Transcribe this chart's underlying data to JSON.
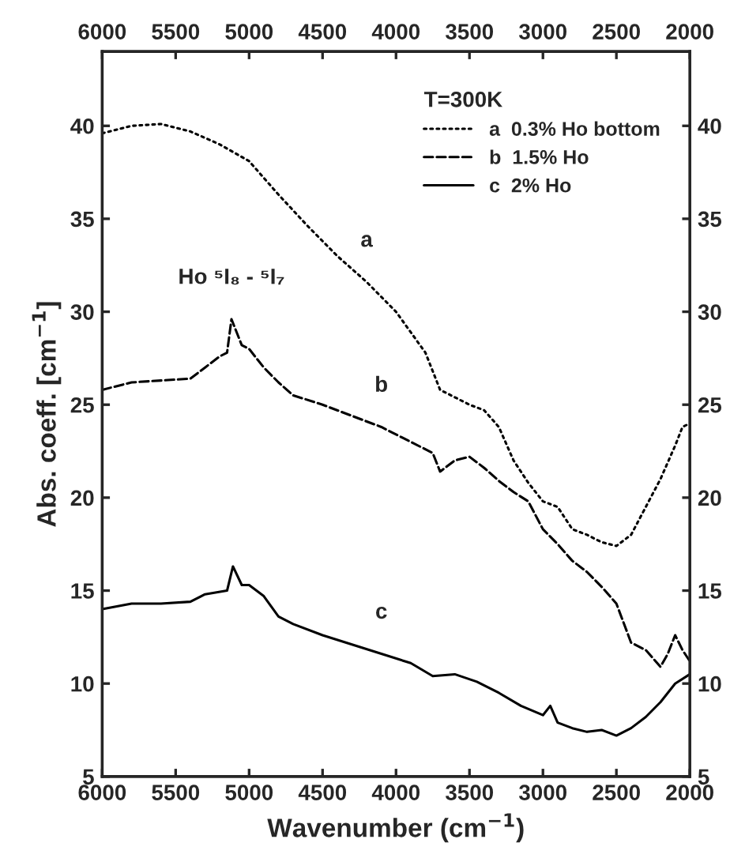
{
  "chart_data": {
    "type": "line",
    "xlabel": "Wavenumber (cm$^{−1}$)",
    "ylabel": "Abs. coeff. [cm$^{−1}$]",
    "legend_title": "T=300K",
    "legend": "top right",
    "xlim": [
      6000,
      2000
    ],
    "xticks": [
      6000,
      5500,
      5000,
      4500,
      4000,
      3500,
      3000,
      2500,
      2000
    ],
    "x2lim": [
      6000,
      2000
    ],
    "x2ticks": [
      6000,
      5500,
      5000,
      4500,
      4000,
      3500,
      3000,
      2500,
      2000
    ],
    "ylim": [
      5,
      44
    ],
    "yticks": [
      5,
      10,
      15,
      20,
      25,
      30,
      35,
      40
    ],
    "y2lim": [
      5,
      44
    ],
    "y2ticks": [
      5,
      10,
      15,
      20,
      25,
      30,
      35,
      40
    ],
    "grid": false,
    "series": [
      {
        "name": "a  0.3% Ho bottom",
        "color": "#000000",
        "line_style": "dotted",
        "x": [
          6000,
          5800,
          5600,
          5400,
          5200,
          5000,
          4800,
          4600,
          4400,
          4200,
          4000,
          3800,
          3700,
          3600,
          3500,
          3400,
          3300,
          3200,
          3100,
          3000,
          2900,
          2800,
          2700,
          2600,
          2500,
          2400,
          2300,
          2200,
          2100,
          2050,
          2000
        ],
        "values": [
          39.6,
          40.0,
          40.1,
          39.7,
          39.0,
          38.1,
          36.3,
          34.6,
          33.0,
          31.6,
          30.0,
          27.8,
          25.8,
          25.4,
          25.0,
          24.7,
          23.8,
          22.0,
          20.8,
          19.8,
          19.5,
          18.3,
          18.0,
          17.6,
          17.4,
          18.0,
          19.5,
          21.0,
          22.8,
          23.8,
          24.0
        ]
      },
      {
        "name": "b  1.5% Ho",
        "color": "#000000",
        "line_style": "dashed",
        "x": [
          6000,
          5800,
          5600,
          5400,
          5300,
          5200,
          5150,
          5120,
          5050,
          5000,
          4900,
          4800,
          4700,
          4500,
          4300,
          4100,
          3900,
          3750,
          3700,
          3600,
          3500,
          3400,
          3300,
          3200,
          3100,
          3000,
          2900,
          2800,
          2700,
          2600,
          2500,
          2400,
          2300,
          2200,
          2150,
          2100,
          2050,
          2000
        ],
        "values": [
          25.8,
          26.2,
          26.3,
          26.4,
          27.0,
          27.6,
          27.8,
          29.6,
          28.2,
          28.0,
          27.0,
          26.2,
          25.5,
          25.0,
          24.4,
          23.8,
          23.0,
          22.4,
          21.4,
          22.0,
          22.2,
          21.6,
          20.9,
          20.3,
          19.8,
          18.3,
          17.5,
          16.6,
          16.0,
          15.2,
          14.3,
          12.2,
          11.8,
          10.9,
          11.6,
          12.6,
          11.8,
          11.2
        ]
      },
      {
        "name": "c  2% Ho",
        "color": "#000000",
        "line_style": "solid",
        "x": [
          6000,
          5800,
          5600,
          5400,
          5300,
          5150,
          5110,
          5050,
          5000,
          4900,
          4800,
          4700,
          4500,
          4300,
          4100,
          3900,
          3750,
          3600,
          3450,
          3300,
          3150,
          3000,
          2950,
          2900,
          2800,
          2700,
          2600,
          2500,
          2400,
          2300,
          2200,
          2100,
          2000
        ],
        "values": [
          14.0,
          14.3,
          14.3,
          14.4,
          14.8,
          15.0,
          16.3,
          15.3,
          15.3,
          14.7,
          13.6,
          13.2,
          12.6,
          12.1,
          11.6,
          11.1,
          10.4,
          10.5,
          10.1,
          9.5,
          8.8,
          8.3,
          8.8,
          7.9,
          7.6,
          7.4,
          7.5,
          7.2,
          7.6,
          8.2,
          9.0,
          10.0,
          10.5
        ]
      }
    ],
    "annotations": [
      {
        "text": "a",
        "x": 4200,
        "y": 31.6
      },
      {
        "text": "b",
        "x": 4100,
        "y": 23.8
      },
      {
        "text": "c",
        "x": 4100,
        "y": 11.6
      },
      {
        "text": "Ho ⁵I₈ - ⁵I₇",
        "x": 5120,
        "y": 29.6
      }
    ]
  }
}
